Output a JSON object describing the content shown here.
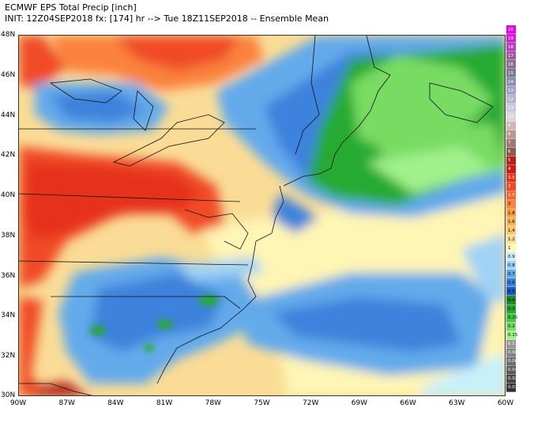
{
  "header": {
    "title": "ECMWF EPS Total Precip [inch]",
    "subtitle": "INIT: 12Z04SEP2018 fx: [174] hr --> Tue 18Z11SEP2018 -- Ensemble Mean"
  },
  "axes": {
    "lat_labels": [
      "48N",
      "46N",
      "44N",
      "42N",
      "40N",
      "38N",
      "36N",
      "34N",
      "32N",
      "30N"
    ],
    "lon_labels": [
      "90W",
      "87W",
      "84W",
      "81W",
      "78W",
      "75W",
      "72W",
      "69W",
      "66W",
      "63W",
      "60W"
    ]
  },
  "legend": {
    "levels": [
      "20",
      "19",
      "18",
      "17",
      "16",
      "15",
      "14",
      "13",
      "12",
      "11",
      "10",
      "9",
      "8",
      "7",
      "6",
      "5",
      "4",
      "3.5",
      "3",
      "2.5",
      "2",
      "1.8",
      "1.6",
      "1.4",
      "1.2",
      "1",
      "0.9",
      "0.8",
      "0.7",
      "0.6",
      "0.5",
      "0.4",
      "0.3",
      "0.25",
      "0.2",
      "0.15",
      "0.1",
      "0.08",
      "0.06",
      "0.04",
      "0.02",
      "0.01"
    ],
    "colors": [
      "#e600e6",
      "#d21ed2",
      "#bc3cbc",
      "#a05aa0",
      "#8c6e8c",
      "#7a7a9a",
      "#8c8cb4",
      "#a0a0c8",
      "#b4b4d2",
      "#c8c8dc",
      "#dcd2dc",
      "#d2b4b4",
      "#bc9696",
      "#a07878",
      "#8c5a50",
      "#b4201c",
      "#cd1e14",
      "#e6321e",
      "#f04b28",
      "#f56432",
      "#fa823c",
      "#fa9b46",
      "#f5b45a",
      "#f5c86e",
      "#fadc96",
      "#fff5b4",
      "#c8f0fa",
      "#a0d2f5",
      "#64aaeb",
      "#3c82dc",
      "#1e5ac8",
      "#1e8c28",
      "#28aa32",
      "#46c846",
      "#78dc64",
      "#a0f08c",
      "#969696",
      "#828282",
      "#6e6e6e",
      "#5a5a5a",
      "#464646",
      "#323232"
    ]
  }
}
